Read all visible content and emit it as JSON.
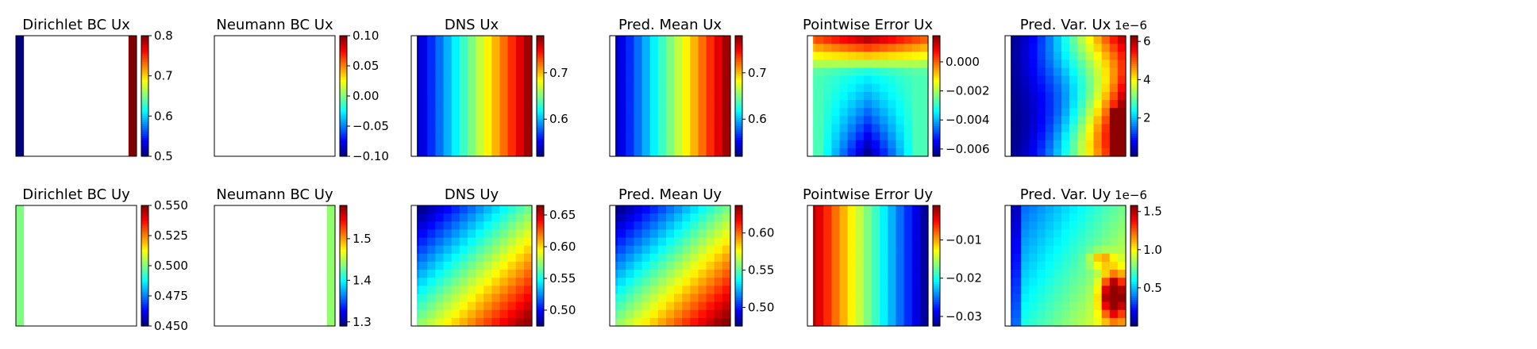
{
  "colormap": {
    "name": "jet",
    "stops": [
      "#00007f",
      "#0000ff",
      "#007fff",
      "#00ffff",
      "#7fff7f",
      "#ffff00",
      "#ff7f00",
      "#ff0000",
      "#7f0000"
    ]
  },
  "chart_data": [
    {
      "type": "heatmap",
      "title": "Dirichlet BC Ux",
      "pattern": "edges",
      "left_edge": 0.5,
      "right_edge": 0.8,
      "fill": null,
      "clim": [
        0.5,
        0.8
      ],
      "cbar_ticks": [
        {
          "v": 0.5,
          "label": "0.5"
        },
        {
          "v": 0.6,
          "label": "0.6"
        },
        {
          "v": 0.7,
          "label": "0.7"
        },
        {
          "v": 0.8,
          "label": "0.8"
        }
      ],
      "cbar_exponent": ""
    },
    {
      "type": "heatmap",
      "title": "Neumann BC Ux",
      "pattern": "empty",
      "clim": [
        -0.1,
        0.1
      ],
      "cbar_ticks": [
        {
          "v": -0.1,
          "label": "−0.10"
        },
        {
          "v": -0.05,
          "label": "−0.05"
        },
        {
          "v": 0.0,
          "label": "0.00"
        },
        {
          "v": 0.05,
          "label": "0.05"
        },
        {
          "v": 0.1,
          "label": "0.10"
        }
      ],
      "cbar_exponent": ""
    },
    {
      "type": "heatmap",
      "title": "DNS Ux",
      "pattern": "x_gradient",
      "start": 0.52,
      "end": 0.78,
      "clim": [
        0.52,
        0.78
      ],
      "cbar_ticks": [
        {
          "v": 0.6,
          "label": "0.6"
        },
        {
          "v": 0.7,
          "label": "0.7"
        }
      ],
      "cbar_exponent": ""
    },
    {
      "type": "heatmap",
      "title": "Pred. Mean Ux",
      "pattern": "x_gradient",
      "start": 0.52,
      "end": 0.78,
      "clim": [
        0.52,
        0.78
      ],
      "cbar_ticks": [
        {
          "v": 0.6,
          "label": "0.6"
        },
        {
          "v": 0.7,
          "label": "0.7"
        }
      ],
      "cbar_exponent": ""
    },
    {
      "type": "heatmap",
      "title": "Pointwise Error Ux",
      "pattern": "arch",
      "top": 0.0018,
      "base": -0.0028,
      "bottom": -0.0065,
      "clim": [
        -0.0065,
        0.0018
      ],
      "cbar_ticks": [
        {
          "v": -0.006,
          "label": "−0.006"
        },
        {
          "v": -0.004,
          "label": "−0.004"
        },
        {
          "v": -0.002,
          "label": "−0.002"
        },
        {
          "v": 0.0,
          "label": "0.000"
        }
      ],
      "cbar_exponent": ""
    },
    {
      "type": "heatmap",
      "title": "Pred. Var. Ux",
      "pattern": "var_x",
      "low": 0.0,
      "high": 6.2,
      "clim": [
        0.0,
        6.3
      ],
      "cbar_ticks": [
        {
          "v": 2,
          "label": "2"
        },
        {
          "v": 4,
          "label": "4"
        },
        {
          "v": 6,
          "label": "6"
        }
      ],
      "cbar_exponent": "1e−6"
    },
    {
      "type": "heatmap",
      "title": "Dirichlet BC Uy",
      "pattern": "edges",
      "left_edge": 0.5,
      "right_edge": null,
      "fill": null,
      "clim": [
        0.45,
        0.55
      ],
      "cbar_ticks": [
        {
          "v": 0.45,
          "label": "0.450"
        },
        {
          "v": 0.475,
          "label": "0.475"
        },
        {
          "v": 0.5,
          "label": "0.500"
        },
        {
          "v": 0.525,
          "label": "0.525"
        },
        {
          "v": 0.55,
          "label": "0.550"
        }
      ],
      "cbar_exponent": ""
    },
    {
      "type": "heatmap",
      "title": "Neumann BC Uy",
      "pattern": "edges",
      "left_edge": null,
      "right_edge": 1.44,
      "fill": null,
      "clim": [
        1.29,
        1.58
      ],
      "cbar_ticks": [
        {
          "v": 1.3,
          "label": "1.3"
        },
        {
          "v": 1.4,
          "label": "1.4"
        },
        {
          "v": 1.5,
          "label": "1.5"
        }
      ],
      "cbar_exponent": ""
    },
    {
      "type": "heatmap",
      "title": "DNS Uy",
      "pattern": "diagonal",
      "low": 0.475,
      "high": 0.66,
      "clim": [
        0.475,
        0.665
      ],
      "cbar_ticks": [
        {
          "v": 0.5,
          "label": "0.50"
        },
        {
          "v": 0.55,
          "label": "0.55"
        },
        {
          "v": 0.6,
          "label": "0.60"
        },
        {
          "v": 0.65,
          "label": "0.65"
        }
      ],
      "cbar_exponent": ""
    },
    {
      "type": "heatmap",
      "title": "Pred. Mean Uy",
      "pattern": "diagonal",
      "low": 0.475,
      "high": 0.635,
      "clim": [
        0.475,
        0.637
      ],
      "cbar_ticks": [
        {
          "v": 0.5,
          "label": "0.50"
        },
        {
          "v": 0.55,
          "label": "0.55"
        },
        {
          "v": 0.6,
          "label": "0.60"
        }
      ],
      "cbar_exponent": ""
    },
    {
      "type": "heatmap",
      "title": "Pointwise Error Uy",
      "pattern": "x_gradient",
      "start": -0.001,
      "end": -0.0325,
      "clim": [
        -0.0325,
        -0.001
      ],
      "cbar_ticks": [
        {
          "v": -0.03,
          "label": "−0.03"
        },
        {
          "v": -0.02,
          "label": "−0.02"
        },
        {
          "v": -0.01,
          "label": "−0.01"
        }
      ],
      "cbar_exponent": ""
    },
    {
      "type": "heatmap",
      "title": "Pred. Var. Uy",
      "pattern": "var_y",
      "low": 0.0,
      "high": 1.55,
      "clim": [
        0.0,
        1.58
      ],
      "cbar_ticks": [
        {
          "v": 0.5,
          "label": "0.5"
        },
        {
          "v": 1.0,
          "label": "1.0"
        },
        {
          "v": 1.5,
          "label": "1.5"
        }
      ],
      "cbar_exponent": "1e−6"
    }
  ]
}
